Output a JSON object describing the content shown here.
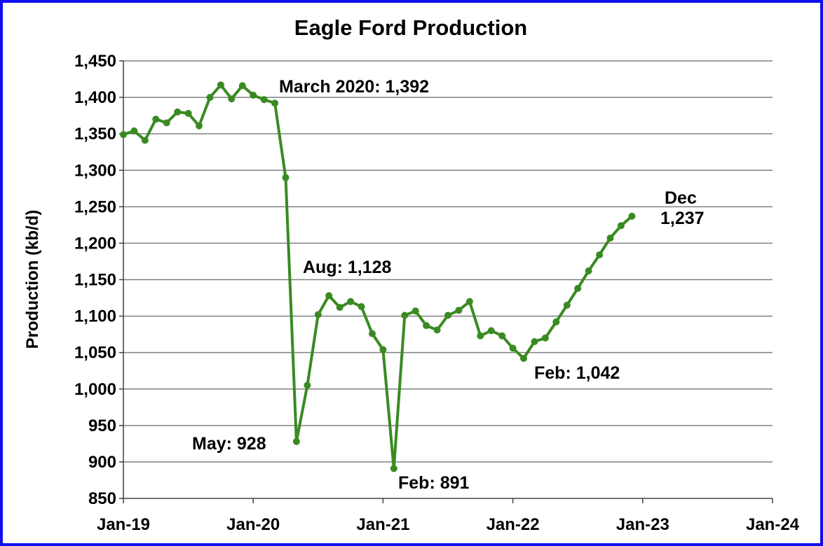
{
  "chart_data": {
    "type": "line",
    "title": "Eagle Ford Production",
    "xlabel": "",
    "ylabel": "Production (kb/d)",
    "ylim": [
      850,
      1450
    ],
    "y_ticks": [
      850,
      900,
      950,
      1000,
      1050,
      1100,
      1150,
      1200,
      1250,
      1300,
      1350,
      1400,
      1450
    ],
    "y_tick_labels": [
      "850",
      "900",
      "950",
      "1,000",
      "1,050",
      "1,100",
      "1,150",
      "1,200",
      "1,250",
      "1,300",
      "1,350",
      "1,400",
      "1,450"
    ],
    "x_tick_labels": [
      "Jan-19",
      "Jan-20",
      "Jan-21",
      "Jan-22",
      "Jan-23",
      "Jan-24"
    ],
    "x_start": "Jan-19",
    "x_end": "Jan-24",
    "grid": "horizontal",
    "series_color": "#3a8a22",
    "series": [
      {
        "name": "",
        "x": [
          "2019-01",
          "2019-02",
          "2019-03",
          "2019-04",
          "2019-05",
          "2019-06",
          "2019-07",
          "2019-08",
          "2019-09",
          "2019-10",
          "2019-11",
          "2019-12",
          "2020-01",
          "2020-02",
          "2020-03",
          "2020-04",
          "2020-05",
          "2020-06",
          "2020-07",
          "2020-08",
          "2020-09",
          "2020-10",
          "2020-11",
          "2020-12",
          "2021-01",
          "2021-02",
          "2021-03",
          "2021-04",
          "2021-05",
          "2021-06",
          "2021-07",
          "2021-08",
          "2021-09",
          "2021-10",
          "2021-11",
          "2021-12",
          "2022-01",
          "2022-02",
          "2022-03",
          "2022-04",
          "2022-05",
          "2022-06",
          "2022-07",
          "2022-08",
          "2022-09",
          "2022-10",
          "2022-11",
          "2022-12"
        ],
        "values": [
          1349,
          1354,
          1341,
          1370,
          1365,
          1380,
          1378,
          1361,
          1400,
          1417,
          1398,
          1416,
          1403,
          1397,
          1392,
          1290,
          928,
          1005,
          1102,
          1128,
          1112,
          1120,
          1113,
          1076,
          1054,
          891,
          1101,
          1107,
          1087,
          1081,
          1101,
          1108,
          1120,
          1073,
          1080,
          1073,
          1056,
          1042,
          1065,
          1070,
          1092,
          1115,
          1138,
          1162,
          1184,
          1207,
          1224,
          1237
        ]
      }
    ],
    "annotations": [
      {
        "text": "March 2020: 1,392"
      },
      {
        "text": "Aug: 1,128"
      },
      {
        "text": "May: 928"
      },
      {
        "text": "Feb: 891"
      },
      {
        "text": "Feb: 1,042"
      },
      {
        "text": "Dec"
      },
      {
        "text": "1,237"
      }
    ]
  }
}
